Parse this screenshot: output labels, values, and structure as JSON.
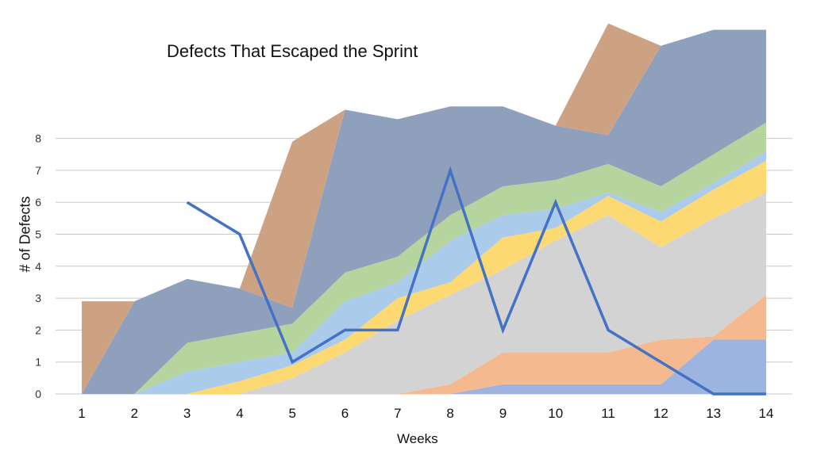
{
  "chart_data": {
    "type": "area",
    "stacked": true,
    "title": "Defects That Escaped the Sprint",
    "xlabel": "Weeks",
    "ylabel": "# of Defects",
    "categories": [
      "1",
      "2",
      "3",
      "4",
      "5",
      "6",
      "7",
      "8",
      "9",
      "10",
      "11",
      "12",
      "13",
      "14"
    ],
    "yticks": [
      "0",
      "1",
      "2",
      "3",
      "4",
      "5",
      "6",
      "7",
      "8"
    ],
    "ylim": [
      0,
      12
    ],
    "grid": true,
    "legend": "none",
    "series": [
      {
        "color": "#9db3e0",
        "values": [
          0,
          0,
          0,
          0,
          0,
          0,
          0,
          0,
          0.3,
          0.3,
          0.3,
          0.3,
          1.7,
          1.7
        ]
      },
      {
        "color": "#f4b98f",
        "values": [
          0,
          0,
          0,
          0,
          0,
          0,
          0,
          0.3,
          1.0,
          1.0,
          1.0,
          1.4,
          0.1,
          1.4
        ]
      },
      {
        "color": "#d3d3d3",
        "values": [
          0,
          0,
          0,
          0,
          0.5,
          1.3,
          2.3,
          2.8,
          2.6,
          3.5,
          4.3,
          2.9,
          3.7,
          3.2
        ]
      },
      {
        "color": "#fdd974",
        "values": [
          0,
          0,
          0,
          0.4,
          0.4,
          0.4,
          0.7,
          0.4,
          1.0,
          0.4,
          0.6,
          0.8,
          0.9,
          1.0
        ]
      },
      {
        "color": "#abcbea",
        "values": [
          0,
          0,
          0.7,
          0.6,
          0.4,
          1.2,
          0.5,
          1.3,
          0.7,
          0.6,
          0.1,
          0.3,
          0.2,
          0.3
        ]
      },
      {
        "color": "#b6d49e",
        "values": [
          0,
          0,
          0.9,
          0.9,
          0.9,
          0.9,
          0.8,
          0.8,
          0.9,
          0.9,
          0.9,
          0.8,
          0.9,
          0.9
        ]
      },
      {
        "color": "#8fa0bd",
        "values": [
          0,
          2.9,
          2.0,
          1.4,
          0.5,
          5.1,
          4.3,
          3.4,
          2.5,
          1.7,
          0.9,
          4.4,
          3.9,
          2.9
        ]
      },
      {
        "color": "#cda283",
        "values": [
          2.9,
          0,
          0,
          0,
          5.2,
          0,
          0,
          0,
          0,
          0,
          3.5,
          0,
          0,
          0
        ]
      }
    ],
    "line": {
      "color": "#4472c4",
      "values": [
        null,
        null,
        6,
        5,
        1,
        2,
        2,
        7,
        2,
        6,
        2,
        1,
        0,
        0
      ]
    }
  }
}
